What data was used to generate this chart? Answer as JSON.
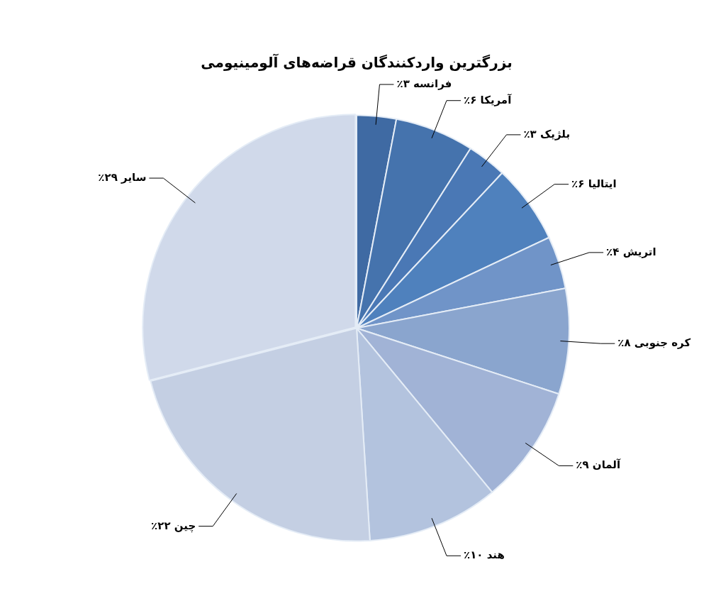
{
  "chart_data": {
    "type": "pie",
    "title": "بزرگترین واردکنندگان قراضه‌های آلومینیومی",
    "categories": [
      "فرانسه",
      "آمریکا",
      "بلژیک",
      "ایتالیا",
      "اتریش",
      "کره جنوبی",
      "آلمان",
      "هند",
      "چین",
      "سایر"
    ],
    "values": [
      3,
      6,
      3,
      6,
      4,
      8,
      9,
      10,
      22,
      29
    ],
    "value_labels": [
      "۳٪",
      "۶٪",
      "۳٪",
      "۶٪",
      "۴٪",
      "۸٪",
      "۹٪",
      "۱۰٪",
      "۲۲٪",
      "۲۹٪"
    ],
    "colors": [
      "#3f6aa3",
      "#4573ad",
      "#4a78b5",
      "#4f81bd",
      "#7094c8",
      "#8aa5ce",
      "#a1b3d6",
      "#b3c3de",
      "#c4cfe3",
      "#d0d9ea"
    ],
    "legend": false
  }
}
